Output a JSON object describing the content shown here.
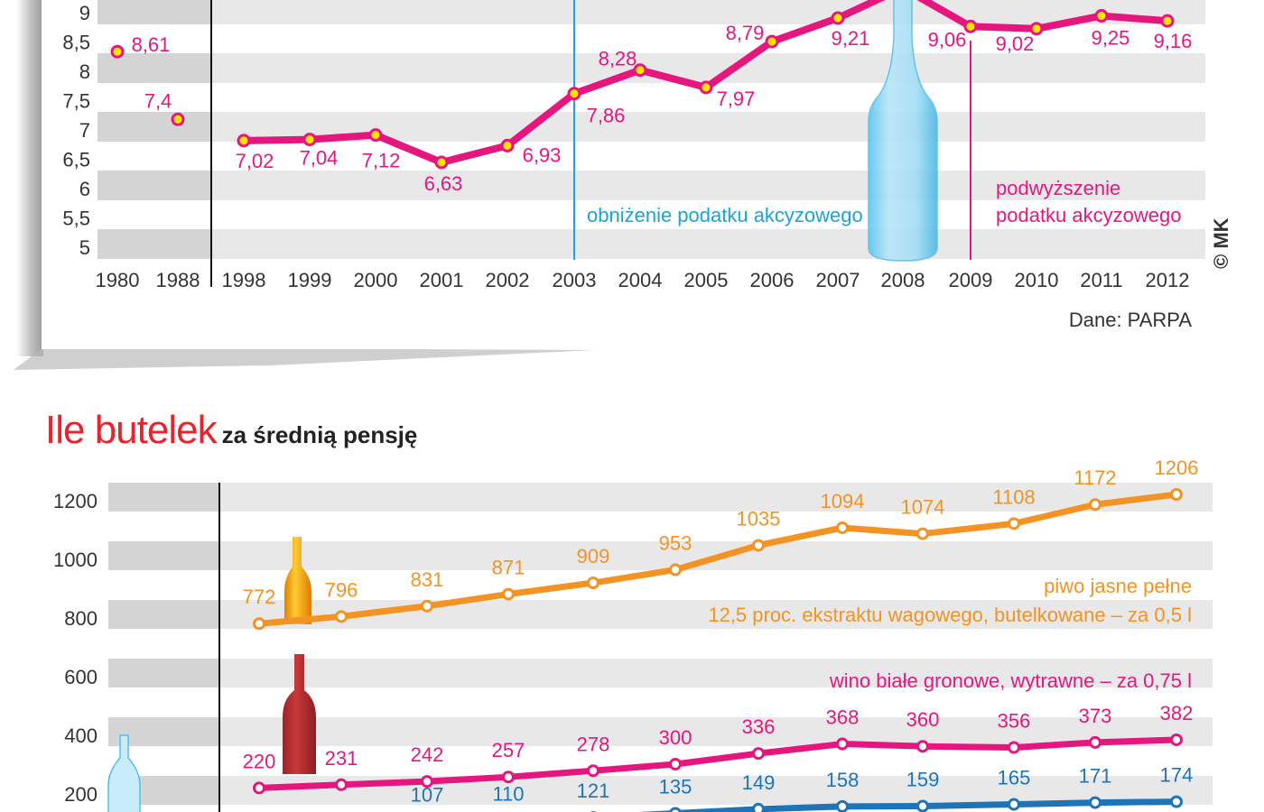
{
  "chart_data": [
    {
      "type": "line",
      "title": "",
      "xlabel": "",
      "ylabel": "",
      "categories": [
        "1980",
        "1988",
        "1998",
        "1999",
        "2000",
        "2001",
        "2002",
        "2003",
        "2004",
        "2005",
        "2006",
        "2007",
        "2008",
        "2009",
        "2010",
        "2011",
        "2012"
      ],
      "y_ticks": [
        "5",
        "5,5",
        "6",
        "6,5",
        "7",
        "7,5",
        "8",
        "8,5",
        "9"
      ],
      "ylim": [
        5,
        9
      ],
      "grid": "alternating horizontal bands",
      "series": [
        {
          "values": [
            8.61,
            7.4,
            7.02,
            7.04,
            7.12,
            6.63,
            6.93,
            7.86,
            8.28,
            7.97,
            8.79,
            9.21,
            null,
            9.06,
            9.02,
            9.25,
            9.16
          ],
          "labels": [
            "8,61",
            "7,4",
            "7,02",
            "7,04",
            "7,12",
            "6,63",
            "6,93",
            "7,86",
            "8,28",
            "7,97",
            "8,79",
            "9,21",
            "",
            "9,06",
            "9,02",
            "9,25",
            "9,16"
          ],
          "color": "#e5177e"
        }
      ],
      "annotations": [
        {
          "year": "2003",
          "text": "obniżenie podatku akcyzowego",
          "color": "#1ca3d8"
        },
        {
          "year": "2009",
          "text_lines": [
            "podwyższenie",
            "podatku akcyzowego"
          ],
          "color": "#e5177e"
        }
      ],
      "source": "Dane: PARPA",
      "credit": "© MK"
    },
    {
      "type": "line",
      "title": "Ile butelek",
      "subtitle": "za średnią pensję",
      "xlabel": "",
      "ylabel": "",
      "y_ticks": [
        "200",
        "400",
        "600",
        "800",
        "1000",
        "1200"
      ],
      "ylim": [
        200,
        1200
      ],
      "grid": "alternating horizontal bands",
      "series": [
        {
          "name": "piwo jasne pełne 12,5 proc. ekstraktu wagowego, butelkowane – za 0,5 l",
          "name_lines": [
            "piwo jasne pełne",
            "12,5 proc. ekstraktu wagowego, butelkowane – za 0,5 l"
          ],
          "values": [
            772,
            796,
            831,
            871,
            909,
            953,
            1035,
            1094,
            1074,
            1108,
            1172,
            1206
          ],
          "color": "#f39323"
        },
        {
          "name": "wino białe gronowe, wytrawne – za 0,75 l",
          "name_lines": [
            "wino białe gronowe, wytrawne – za 0,75 l"
          ],
          "values": [
            220,
            231,
            242,
            257,
            278,
            300,
            336,
            368,
            360,
            356,
            373,
            382
          ],
          "color": "#e5177e"
        },
        {
          "values": [
            null,
            null,
            107,
            110,
            121,
            135,
            149,
            158,
            159,
            165,
            171,
            174
          ],
          "color": "#1f73b7"
        }
      ]
    }
  ],
  "colors": {
    "band_light": "#e8e8e8",
    "band_dark": "#d4d4d4",
    "marker_fill": "#ffe400"
  }
}
